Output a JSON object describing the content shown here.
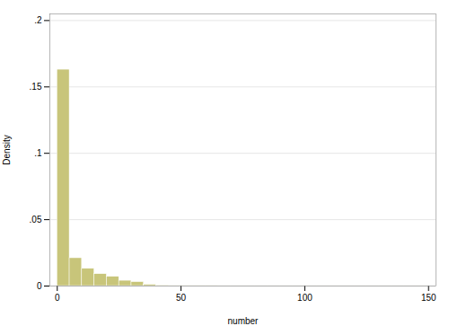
{
  "chart_data": {
    "type": "histogram",
    "xlabel": "number",
    "ylabel": "Density",
    "color": "#c8c57a",
    "bins": [
      0,
      5,
      10,
      15,
      20,
      25,
      30,
      35,
      40,
      45,
      50,
      55,
      60,
      65,
      70,
      75,
      80,
      85,
      90,
      95,
      100,
      105,
      110,
      115,
      120,
      125,
      130,
      135,
      140,
      145,
      150
    ],
    "values": [
      0.163,
      0.021,
      0.013,
      0.009,
      0.007,
      0.004,
      0.003,
      0.001,
      0.0005,
      0.0001,
      0.0001,
      0.0001,
      0.0001,
      5e-05,
      5e-05,
      5e-05,
      5e-05,
      5e-05,
      5e-05,
      5e-05,
      5e-05,
      5e-05,
      5e-05,
      5e-05,
      5e-05,
      5e-05,
      5e-05,
      5e-05,
      5e-05,
      5e-05
    ],
    "xlim": [
      -3,
      153
    ],
    "ylim": [
      0,
      0.205
    ],
    "xticks": [
      0,
      50,
      100,
      150
    ],
    "yticks": [
      0,
      {
        "value": 0.05,
        "label": ".05"
      },
      {
        "value": 0.1,
        "label": ".1"
      },
      {
        "value": 0.15,
        "label": ".15"
      },
      {
        "value": 0.2,
        "label": ".2"
      }
    ],
    "grid": true
  }
}
